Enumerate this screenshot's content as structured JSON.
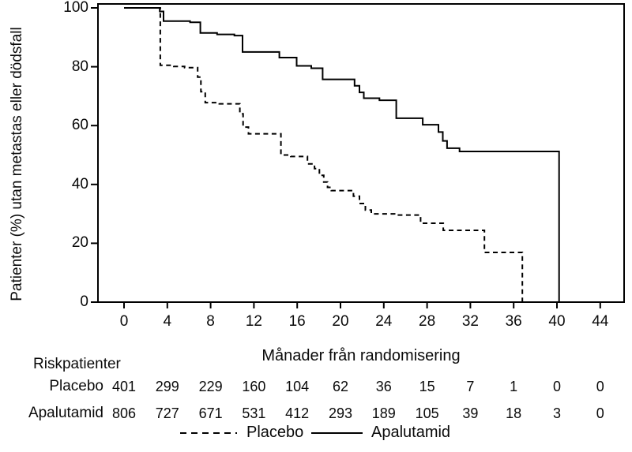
{
  "chart_data": {
    "type": "line",
    "subtype": "kaplan-meier-step",
    "title": "",
    "xlabel": "Månader från randomisering",
    "ylabel": "Patienter (%) utan metastas eller dödsfall",
    "xlim": [
      0,
      46
    ],
    "ylim": [
      0,
      100
    ],
    "grid": false,
    "x_ticks": [
      0,
      4,
      8,
      12,
      16,
      20,
      24,
      28,
      32,
      36,
      40,
      44
    ],
    "y_ticks": [
      0,
      20,
      40,
      60,
      80,
      100
    ],
    "legend_position": "bottom",
    "colors": {
      "curve": "#000000",
      "text": "#0a0a0a",
      "background": "#ffffff"
    },
    "series": [
      {
        "name": "Placebo",
        "style": "dashed",
        "start": [
          0,
          100
        ],
        "steps": [
          [
            3.35,
            80.5
          ],
          [
            4.6,
            80.1
          ],
          [
            5.6,
            79.7
          ],
          [
            6.8,
            76.5
          ],
          [
            7.1,
            71.5
          ],
          [
            7.5,
            67.8
          ],
          [
            8.8,
            67.4
          ],
          [
            10.7,
            64.0
          ],
          [
            11.0,
            59.5
          ],
          [
            11.5,
            57.2
          ],
          [
            14.5,
            50.0
          ],
          [
            15.4,
            49.5
          ],
          [
            16.95,
            47.0
          ],
          [
            17.6,
            45.4
          ],
          [
            18.05,
            43.1
          ],
          [
            18.45,
            40.8
          ],
          [
            18.8,
            39.0
          ],
          [
            19.15,
            37.9
          ],
          [
            21.2,
            36.0
          ],
          [
            21.75,
            33.5
          ],
          [
            22.3,
            31.3
          ],
          [
            22.85,
            30.0
          ],
          [
            25.0,
            29.6
          ],
          [
            27.4,
            26.8
          ],
          [
            29.5,
            24.4
          ],
          [
            33.3,
            16.9
          ],
          [
            36.8,
            0
          ]
        ]
      },
      {
        "name": "Apalutamid",
        "style": "solid",
        "start": [
          0,
          100
        ],
        "steps": [
          [
            3.3,
            98.8
          ],
          [
            3.65,
            95.5
          ],
          [
            6.1,
            95.1
          ],
          [
            7.05,
            91.5
          ],
          [
            8.6,
            91.0
          ],
          [
            10.2,
            90.6
          ],
          [
            10.95,
            85.0
          ],
          [
            14.35,
            83.1
          ],
          [
            15.95,
            80.3
          ],
          [
            17.3,
            79.5
          ],
          [
            18.35,
            75.7
          ],
          [
            21.3,
            73.5
          ],
          [
            21.75,
            71.3
          ],
          [
            22.15,
            69.3
          ],
          [
            23.6,
            68.6
          ],
          [
            25.15,
            62.5
          ],
          [
            27.6,
            60.3
          ],
          [
            29.05,
            57.8
          ],
          [
            29.45,
            54.8
          ],
          [
            29.85,
            52.3
          ],
          [
            31.0,
            51.2
          ],
          [
            40.2,
            0
          ]
        ]
      }
    ],
    "risk_table": {
      "title": "Riskpatienter",
      "months": [
        0,
        4,
        8,
        12,
        16,
        20,
        24,
        28,
        32,
        36,
        40,
        44
      ],
      "rows": [
        {
          "name": "Placebo",
          "counts": [
            401,
            299,
            229,
            160,
            104,
            62,
            36,
            15,
            7,
            1,
            0,
            0
          ]
        },
        {
          "name": "Apalutamid",
          "counts": [
            806,
            727,
            671,
            531,
            412,
            293,
            189,
            105,
            39,
            18,
            3,
            0
          ]
        }
      ]
    },
    "legend": [
      {
        "label": "Placebo",
        "style": "dashed"
      },
      {
        "label": "Apalutamid",
        "style": "solid"
      }
    ]
  }
}
